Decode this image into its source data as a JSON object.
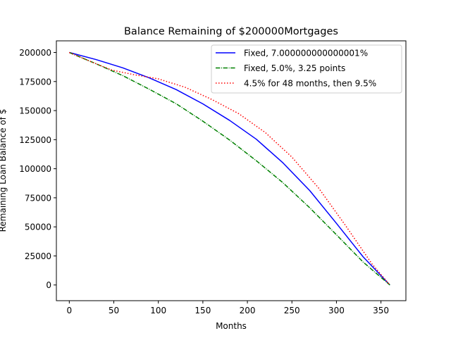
{
  "chart_data": {
    "type": "line",
    "title": "Balance Remaining of $200000Mortgages",
    "xlabel": "Months",
    "ylabel": "Remaining Loan Balance of $",
    "xlim": [
      -14.5,
      378
    ],
    "ylim": [
      -13500,
      210000
    ],
    "x_ticks": [
      0,
      50,
      100,
      150,
      200,
      250,
      300,
      350
    ],
    "x_tick_labels": [
      "0",
      "50",
      "100",
      "150",
      "200",
      "250",
      "300",
      "350"
    ],
    "y_ticks": [
      0,
      25000,
      50000,
      75000,
      100000,
      125000,
      150000,
      175000,
      200000
    ],
    "y_tick_labels": [
      "0",
      "25000",
      "50000",
      "75000",
      "100000",
      "125000",
      "150000",
      "175000",
      "200000"
    ],
    "grid": false,
    "legend_position": "top-right",
    "series": [
      {
        "name": "Fixed, 7.000000000000001%",
        "color": "#0000ff",
        "style": "solid",
        "x": [
          0,
          30,
          60,
          90,
          120,
          150,
          180,
          210,
          240,
          270,
          300,
          330,
          360
        ],
        "values": [
          200000,
          193900,
          186800,
          178100,
          168100,
          155800,
          141600,
          125400,
          105000,
          81200,
          53000,
          24200,
          0
        ]
      },
      {
        "name": "Fixed, 5.0%, 3.25 points",
        "color": "#008000",
        "style": "dashdot",
        "x": [
          0,
          30,
          60,
          90,
          120,
          150,
          180,
          210,
          240,
          270,
          300,
          330,
          360
        ],
        "values": [
          200000,
          190300,
          180100,
          168300,
          155900,
          140900,
          124700,
          106900,
          87900,
          66400,
          43200,
          19700,
          0
        ]
      },
      {
        "name": "4.5% for 48 months, then 9.5%",
        "color": "#ff0000",
        "style": "dotted",
        "x": [
          0,
          24,
          48,
          72,
          100,
          130,
          160,
          190,
          220,
          250,
          280,
          310,
          340,
          360
        ],
        "values": [
          200000,
          192200,
          184800,
          181000,
          177300,
          170100,
          159600,
          147500,
          131200,
          110000,
          83400,
          51400,
          18000,
          0
        ]
      }
    ]
  }
}
